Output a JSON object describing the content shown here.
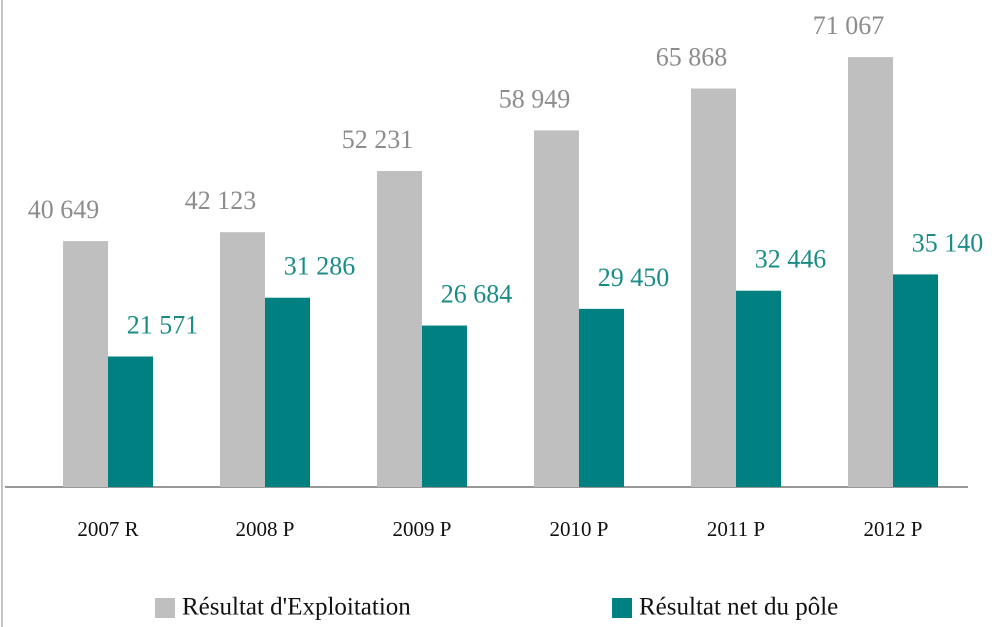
{
  "chart_data": {
    "type": "bar",
    "categories": [
      "2007 R",
      "2008 P",
      "2009 P",
      "2010 P",
      "2011 P",
      "2012 P"
    ],
    "series": [
      {
        "name": "Résultat d'Exploitation",
        "color": "#bfbfbf",
        "label_color": "#8c8c8c",
        "values": [
          40649,
          42123,
          52231,
          58949,
          65868,
          71067
        ],
        "value_labels": [
          "40 649",
          "42 123",
          "52 231",
          "58 949",
          "65 868",
          "71 067"
        ]
      },
      {
        "name": "Résultat net du pôle",
        "color": "#008080",
        "label_color": "#1a8c87",
        "values": [
          21571,
          31286,
          26684,
          29450,
          32446,
          35140
        ],
        "value_labels": [
          "21 571",
          "31 286",
          "26 684",
          "29 450",
          "32 446",
          "35 140"
        ]
      }
    ],
    "ylim": [
      0,
      80500
    ]
  }
}
